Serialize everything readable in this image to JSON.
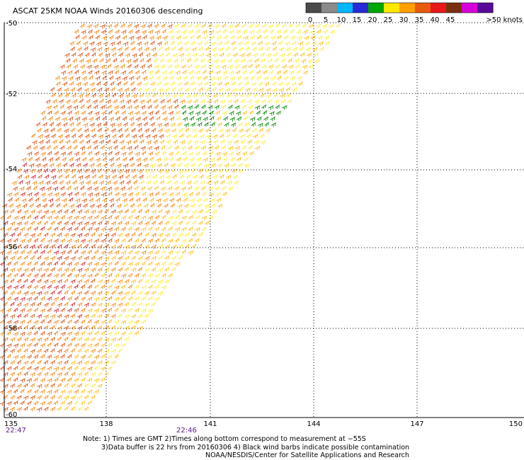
{
  "title": "ASCAT 25KM NOAA Winds 20160306 descending",
  "legend": {
    "labels": [
      "0",
      "5",
      "10",
      "15",
      "20",
      "25",
      "30",
      "35",
      "40",
      "45",
      ">50 knots"
    ],
    "colors": [
      "#4a4a4a",
      "#8a8a8a",
      "#00b8ff",
      "#2a2ad8",
      "#00a800",
      "#ffe800",
      "#ffa000",
      "#e85a10",
      "#e81818",
      "#7a3010",
      "#d800d8",
      "#5a0a9a"
    ]
  },
  "axes": {
    "lat_labels": [
      "-50",
      "-52",
      "-54",
      "-56",
      "-58",
      "-60"
    ],
    "lon_labels": [
      "135",
      "138",
      "141",
      "144",
      "147",
      "150"
    ]
  },
  "times": [
    "22:47",
    "22:46"
  ],
  "notes": {
    "line1": "Note: 1) Times are GMT 2)Times along bottom correspond to measurement at −55S",
    "line2": "3)Data buffer is 22 hrs from 20160306 4) Black wind barbs indicate possible contamination",
    "line3": "NOAA/NESDIS/Center for Satellite Applications and Research"
  },
  "wind_field": {
    "colors": {
      "light": "#ffec40",
      "mid": "#ffc020",
      "orange": "#f08a18",
      "dark": "#d8581c",
      "red": "#d02a3a",
      "green": "#0a8a0a"
    }
  }
}
